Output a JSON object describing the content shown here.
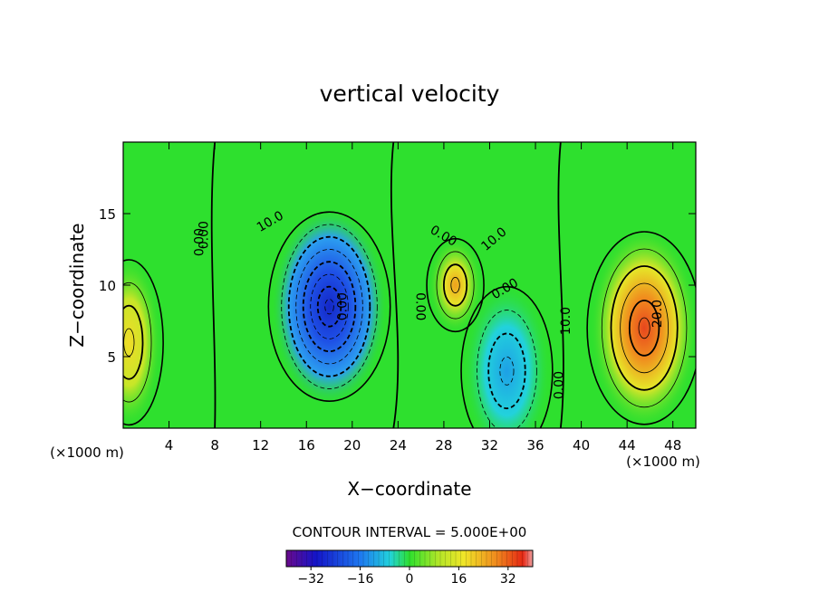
{
  "chart_data": {
    "type": "heatmap",
    "title": "vertical velocity",
    "xlabel": "X−coordinate",
    "ylabel": "Z−coordinate",
    "x_unit_left": "(×1000 m)",
    "x_unit_right": "(×1000 m)",
    "xlim": [
      0,
      50
    ],
    "ylim": [
      0,
      20
    ],
    "x_ticks": [
      "4",
      "8",
      "12",
      "16",
      "20",
      "24",
      "28",
      "32",
      "36",
      "40",
      "44",
      "48"
    ],
    "y_ticks": [
      "5",
      "10",
      "15"
    ],
    "contour_interval_label": "CONTOUR INTERVAL = 5.000E+00",
    "colorbar": {
      "range": [
        -40,
        40
      ],
      "ticks": [
        "−32",
        "−16",
        "0",
        "16",
        "32"
      ]
    },
    "contour_labels": [
      "0.00",
      "10.0",
      "0.00",
      "0.00",
      "0.00",
      "10.0",
      "0.00",
      "10.0",
      "0.00",
      "20.0",
      "0.00"
    ],
    "extrema": [
      {
        "x": 18.0,
        "y": 8.5,
        "value": -35
      },
      {
        "x": 33.5,
        "y": 4.0,
        "value": -14
      },
      {
        "x": 29.0,
        "y": 10.0,
        "value": 15
      },
      {
        "x": 45.5,
        "y": 7.0,
        "value": 26
      },
      {
        "x": 0.5,
        "y": 6.0,
        "value": 14
      }
    ]
  },
  "colors": {
    "background": "#ffffff",
    "frame": "#000000",
    "field_base": "#2ee02e"
  }
}
